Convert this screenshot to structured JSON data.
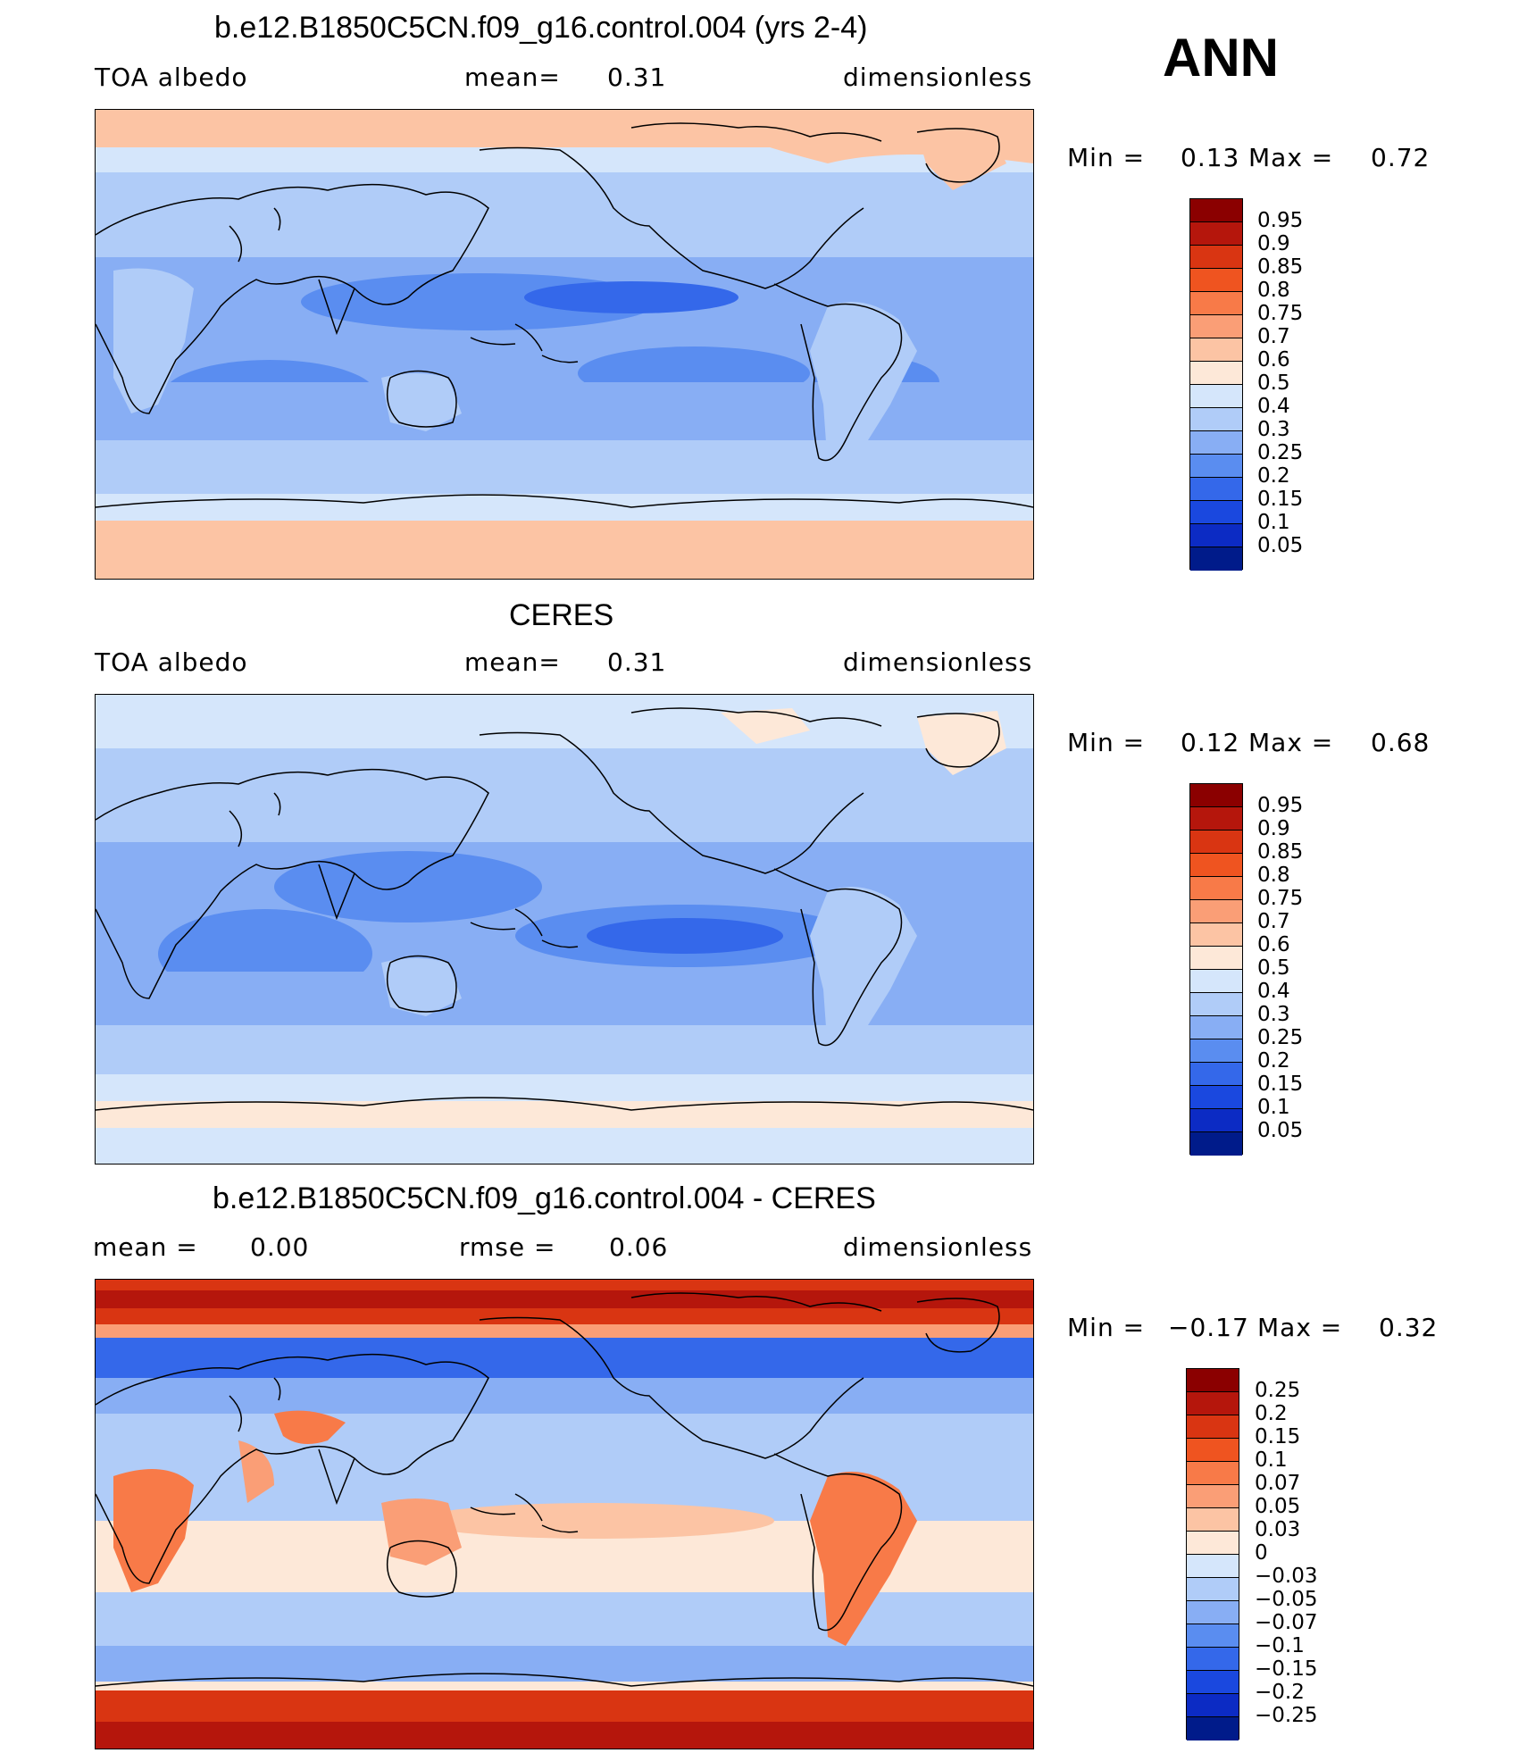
{
  "season": "ANN",
  "panels": [
    {
      "title": "b.e12.B1850C5CN.f09_g16.control.004 (yrs 2-4)",
      "left_label": "TOA albedo",
      "mid_label": "mean=",
      "mid_value": "0.31",
      "right_label": "dimensionless",
      "min_label": "Min =",
      "min_value": "0.13",
      "max_label": "Max =",
      "max_value": "0.72"
    },
    {
      "title": "CERES",
      "left_label": "TOA albedo",
      "mid_label": "mean=",
      "mid_value": "0.31",
      "right_label": "dimensionless",
      "min_label": "Min =",
      "min_value": "0.12",
      "max_label": "Max =",
      "max_value": "0.68"
    },
    {
      "title": "b.e12.B1850C5CN.f09_g16.control.004 - CERES",
      "left_label": "mean =",
      "left_value": "0.00",
      "mid_label": "rmse =",
      "mid_value": "0.06",
      "right_label": "dimensionless",
      "min_label": "Min =",
      "min_value": "−0.17",
      "max_label": "Max =",
      "max_value": "0.32"
    }
  ],
  "colorbar_abs": {
    "labels": [
      "0.95",
      "0.9",
      "0.85",
      "0.8",
      "0.75",
      "0.7",
      "0.6",
      "0.5",
      "0.4",
      "0.3",
      "0.25",
      "0.2",
      "0.15",
      "0.1",
      "0.05"
    ],
    "colors": [
      "#8b0000",
      "#b5160c",
      "#d93512",
      "#ef5420",
      "#f87a48",
      "#fa9e76",
      "#fcc4a4",
      "#fde8d8",
      "#d5e6fb",
      "#b0ccf8",
      "#88aef4",
      "#5a8df0",
      "#3468ea",
      "#1a48df",
      "#0c2bc4",
      "#001b8a"
    ]
  },
  "colorbar_diff": {
    "labels": [
      "0.25",
      "0.2",
      "0.15",
      "0.1",
      "0.07",
      "0.05",
      "0.03",
      "0",
      "−0.03",
      "−0.05",
      "−0.07",
      "−0.1",
      "−0.15",
      "−0.2",
      "−0.25"
    ],
    "colors": [
      "#8b0000",
      "#b5160c",
      "#d93512",
      "#ef5420",
      "#f87a48",
      "#fa9e76",
      "#fcc4a4",
      "#fde8d8",
      "#d5e6fb",
      "#b0ccf8",
      "#88aef4",
      "#5a8df0",
      "#3468ea",
      "#1a48df",
      "#0c2bc4",
      "#001b8a"
    ]
  },
  "chart_data": [
    {
      "type": "heatmap",
      "title": "b.e12.B1850C5CN.f09_g16.control.004 (yrs 2-4)",
      "variable": "TOA albedo",
      "units": "dimensionless",
      "mean": 0.31,
      "min": 0.13,
      "max": 0.72,
      "levels": [
        0.05,
        0.1,
        0.15,
        0.2,
        0.25,
        0.3,
        0.4,
        0.5,
        0.6,
        0.7,
        0.75,
        0.8,
        0.85,
        0.9,
        0.95
      ]
    },
    {
      "type": "heatmap",
      "title": "CERES",
      "variable": "TOA albedo",
      "units": "dimensionless",
      "mean": 0.31,
      "min": 0.12,
      "max": 0.68,
      "levels": [
        0.05,
        0.1,
        0.15,
        0.2,
        0.25,
        0.3,
        0.4,
        0.5,
        0.6,
        0.7,
        0.75,
        0.8,
        0.85,
        0.9,
        0.95
      ]
    },
    {
      "type": "heatmap",
      "title": "b.e12.B1850C5CN.f09_g16.control.004 - CERES",
      "units": "dimensionless",
      "mean": 0.0,
      "rmse": 0.06,
      "min": -0.17,
      "max": 0.32,
      "levels": [
        -0.25,
        -0.2,
        -0.15,
        -0.1,
        -0.07,
        -0.05,
        -0.03,
        0,
        0.03,
        0.05,
        0.07,
        0.1,
        0.15,
        0.2,
        0.25
      ]
    }
  ]
}
